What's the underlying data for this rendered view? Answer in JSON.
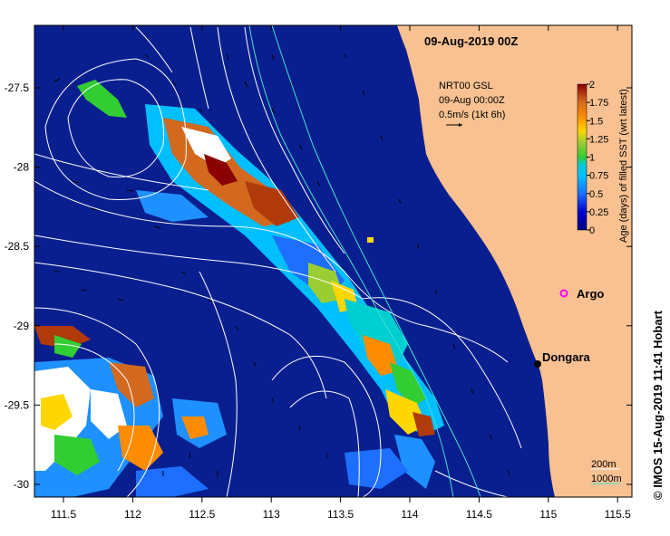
{
  "title": "09-Aug-2019 00Z",
  "info": {
    "line1": "NRT00 GSL",
    "line2": "09-Aug 00:00Z",
    "line3": "0.5m/s (1kt 6h)"
  },
  "colorbar": {
    "label": "Age (days) of filled SST (wrt latest)",
    "ticks": [
      "2",
      "1.75",
      "1.5",
      "1.25",
      "1",
      "0.75",
      "0.5",
      "0.25",
      "0"
    ],
    "colors": [
      "#8b0000",
      "#b03a0a",
      "#d2691e",
      "#ff8c00",
      "#ffd700",
      "#9acd32",
      "#32cd32",
      "#00ced1",
      "#1e90ff",
      "#0000cd",
      "#000080"
    ]
  },
  "x_ticks": [
    "111.5",
    "112",
    "112.5",
    "113",
    "113.5",
    "114",
    "114.5",
    "115",
    "115.5"
  ],
  "y_ticks": [
    "-27.5",
    "-28",
    "-28.5",
    "-29",
    "-29.5",
    "-30"
  ],
  "places": {
    "argo": "Argo",
    "dongara": "Dongara"
  },
  "depth_legend": {
    "d200": "200m",
    "d1000": "1000m"
  },
  "credit": "© IMOS 15-Aug-2019 11:41 Hobart",
  "colors": {
    "ocean": "#0a1f8f",
    "land": "#f9c191",
    "contour": "#ffffff",
    "isobath": "#40e0d0",
    "argo": "#ff00ff"
  }
}
